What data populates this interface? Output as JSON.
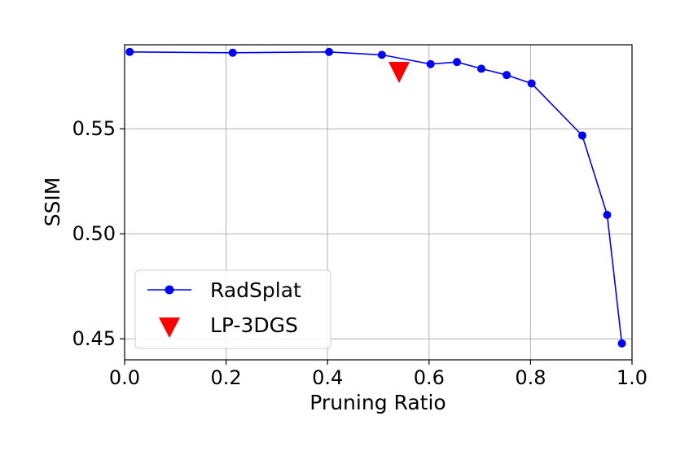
{
  "chart_data": {
    "type": "line",
    "xlabel": "Pruning Ratio",
    "ylabel": "SSIM",
    "xlim": [
      0.0,
      1.0
    ],
    "ylim": [
      0.44,
      0.59
    ],
    "xticks": [
      0.0,
      0.2,
      0.4,
      0.6,
      0.8,
      1.0
    ],
    "xtick_labels": [
      "0.0",
      "0.2",
      "0.4",
      "0.6",
      "0.8",
      "1.0"
    ],
    "yticks": [
      0.45,
      0.5,
      0.55
    ],
    "ytick_labels": [
      "0.45",
      "0.50",
      "0.55"
    ],
    "grid": true,
    "legend_position": "lower-left",
    "series": [
      {
        "name": "RadSplat",
        "color": "#0000ff",
        "marker": "circle",
        "line": true,
        "x": [
          0.01,
          0.213,
          0.403,
          0.507,
          0.603,
          0.655,
          0.703,
          0.753,
          0.802,
          0.902,
          0.951,
          0.98
        ],
        "y": [
          0.5866,
          0.5862,
          0.5866,
          0.5852,
          0.5808,
          0.5818,
          0.5786,
          0.5756,
          0.5716,
          0.5468,
          0.509,
          0.4478
        ]
      },
      {
        "name": "LP-3DGS",
        "color": "#ff0000",
        "marker": "triangle-down",
        "line": false,
        "x": [
          0.541
        ],
        "y": [
          0.5768
        ]
      }
    ]
  }
}
